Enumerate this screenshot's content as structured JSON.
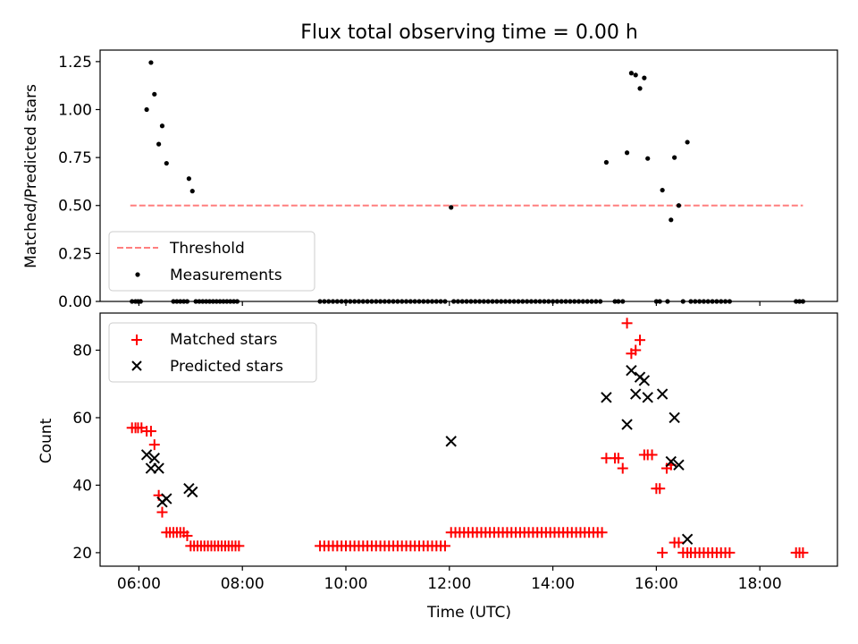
{
  "chart_data": [
    {
      "type": "scatter",
      "title": "Flux total observing time = 0.00 h",
      "xlabel": "",
      "ylabel": "Matched/Predicted stars",
      "xlim": [
        "05:15",
        "19:30"
      ],
      "ylim": [
        0,
        1.31
      ],
      "yticks": [
        0.0,
        0.25,
        0.5,
        0.75,
        1.0,
        1.25
      ],
      "ytick_labels": [
        "0.00",
        "0.25",
        "0.50",
        "0.75",
        "1.00",
        "1.25"
      ],
      "legend_position": "lower-left",
      "series": [
        {
          "name": "Threshold",
          "kind": "line",
          "style": "dashed",
          "color": "#ff7f7f",
          "x": [
            "05:50",
            "18:50"
          ],
          "y": [
            0.5,
            0.5
          ]
        },
        {
          "name": "Measurements",
          "kind": "scatter",
          "marker": "dot",
          "color": "#000000",
          "x": [
            "06:09",
            "06:14",
            "06:18",
            "06:23",
            "06:27",
            "06:32",
            "06:58",
            "07:02",
            "12:02",
            "15:02",
            "15:26",
            "15:31",
            "15:36",
            "15:41",
            "15:46",
            "15:50",
            "16:07",
            "16:17",
            "16:21",
            "16:26",
            "16:36",
            "05:52",
            "05:56",
            "05:59",
            "06:02",
            "06:40",
            "06:44",
            "06:48",
            "06:52",
            "06:56",
            "07:06",
            "07:10",
            "07:14",
            "07:18",
            "07:22",
            "07:26",
            "07:30",
            "07:34",
            "07:38",
            "07:42",
            "07:46",
            "07:50",
            "07:54",
            "09:30",
            "09:35",
            "09:40",
            "09:45",
            "09:50",
            "09:55",
            "10:00",
            "10:05",
            "10:10",
            "10:15",
            "10:20",
            "10:25",
            "10:30",
            "10:35",
            "10:40",
            "10:45",
            "10:50",
            "10:55",
            "11:00",
            "11:05",
            "11:10",
            "11:15",
            "11:20",
            "11:25",
            "11:30",
            "11:35",
            "11:40",
            "11:45",
            "11:50",
            "11:55",
            "12:05",
            "12:10",
            "12:15",
            "12:20",
            "12:25",
            "12:30",
            "12:35",
            "12:40",
            "12:45",
            "12:50",
            "12:55",
            "13:00",
            "13:05",
            "13:10",
            "13:15",
            "13:20",
            "13:25",
            "13:30",
            "13:35",
            "13:40",
            "13:45",
            "13:50",
            "13:55",
            "14:00",
            "14:05",
            "14:10",
            "14:15",
            "14:20",
            "14:25",
            "14:30",
            "14:35",
            "14:40",
            "14:45",
            "14:50",
            "14:55",
            "15:12",
            "15:16",
            "15:21",
            "16:00",
            "16:04",
            "16:13",
            "16:31",
            "16:40",
            "16:45",
            "16:50",
            "16:55",
            "17:00",
            "17:05",
            "17:10",
            "17:15",
            "17:20",
            "17:25",
            "18:42",
            "18:46",
            "18:50"
          ],
          "y": [
            1.0,
            1.245,
            1.08,
            0.82,
            0.915,
            0.72,
            0.64,
            0.575,
            0.49,
            0.725,
            0.775,
            1.19,
            1.18,
            1.11,
            1.165,
            0.745,
            0.58,
            0.425,
            0.75,
            0.5,
            0.83,
            0,
            0,
            0,
            0,
            0,
            0,
            0,
            0,
            0,
            0,
            0,
            0,
            0,
            0,
            0,
            0,
            0,
            0,
            0,
            0,
            0,
            0,
            0,
            0,
            0,
            0,
            0,
            0,
            0,
            0,
            0,
            0,
            0,
            0,
            0,
            0,
            0,
            0,
            0,
            0,
            0,
            0,
            0,
            0,
            0,
            0,
            0,
            0,
            0,
            0,
            0,
            0,
            0,
            0,
            0,
            0,
            0,
            0,
            0,
            0,
            0,
            0,
            0,
            0,
            0,
            0,
            0,
            0,
            0,
            0,
            0,
            0,
            0,
            0,
            0,
            0,
            0,
            0,
            0,
            0,
            0,
            0,
            0,
            0,
            0,
            0,
            0,
            0,
            0,
            0,
            0,
            0,
            0,
            0,
            0,
            0,
            0,
            0,
            0,
            0,
            0,
            0,
            0,
            0,
            0,
            0,
            0
          ]
        }
      ]
    },
    {
      "type": "scatter",
      "title": "",
      "xlabel": "Time (UTC)",
      "ylabel": "Count",
      "xlim": [
        "05:15",
        "19:30"
      ],
      "ylim": [
        16,
        91
      ],
      "xticks": [
        "06:00",
        "08:00",
        "10:00",
        "12:00",
        "14:00",
        "16:00",
        "18:00"
      ],
      "yticks": [
        20,
        40,
        60,
        80
      ],
      "legend_position": "upper-left",
      "series": [
        {
          "name": "Matched stars",
          "kind": "scatter",
          "marker": "plus",
          "color": "#ff0000",
          "x": [
            "05:52",
            "05:56",
            "05:59",
            "06:03",
            "06:09",
            "06:14",
            "06:18",
            "06:23",
            "06:27",
            "06:32",
            "06:36",
            "06:40",
            "06:44",
            "06:48",
            "06:52",
            "06:56",
            "07:00",
            "07:04",
            "07:08",
            "07:12",
            "07:16",
            "07:20",
            "07:24",
            "07:28",
            "07:32",
            "07:36",
            "07:40",
            "07:44",
            "07:48",
            "07:52",
            "07:56",
            "09:30",
            "09:35",
            "09:40",
            "09:45",
            "09:50",
            "09:55",
            "10:00",
            "10:05",
            "10:10",
            "10:15",
            "10:20",
            "10:25",
            "10:30",
            "10:35",
            "10:40",
            "10:45",
            "10:50",
            "10:55",
            "11:00",
            "11:05",
            "11:10",
            "11:15",
            "11:20",
            "11:25",
            "11:30",
            "11:35",
            "11:40",
            "11:45",
            "11:50",
            "11:55",
            "12:02",
            "12:07",
            "12:12",
            "12:17",
            "12:22",
            "12:27",
            "12:32",
            "12:37",
            "12:42",
            "12:47",
            "12:52",
            "12:57",
            "13:02",
            "13:07",
            "13:12",
            "13:17",
            "13:22",
            "13:27",
            "13:32",
            "13:37",
            "13:42",
            "13:47",
            "13:52",
            "13:57",
            "14:02",
            "14:07",
            "14:12",
            "14:17",
            "14:22",
            "14:27",
            "14:32",
            "14:37",
            "14:42",
            "14:47",
            "14:52",
            "14:57",
            "15:02",
            "15:12",
            "15:16",
            "15:21",
            "15:26",
            "15:31",
            "15:36",
            "15:41",
            "15:46",
            "15:50",
            "15:55",
            "16:00",
            "16:04",
            "16:07",
            "16:12",
            "16:17",
            "16:21",
            "16:26",
            "16:31",
            "16:36",
            "16:40",
            "16:45",
            "16:50",
            "16:55",
            "17:00",
            "17:05",
            "17:10",
            "17:15",
            "17:20",
            "17:25",
            "18:42",
            "18:46",
            "18:50"
          ],
          "y": [
            57,
            57,
            57,
            57,
            56,
            56,
            52,
            37,
            32,
            26,
            26,
            26,
            26,
            26,
            26,
            25,
            22,
            22,
            22,
            22,
            22,
            22,
            22,
            22,
            22,
            22,
            22,
            22,
            22,
            22,
            22,
            22,
            22,
            22,
            22,
            22,
            22,
            22,
            22,
            22,
            22,
            22,
            22,
            22,
            22,
            22,
            22,
            22,
            22,
            22,
            22,
            22,
            22,
            22,
            22,
            22,
            22,
            22,
            22,
            22,
            22,
            26,
            26,
            26,
            26,
            26,
            26,
            26,
            26,
            26,
            26,
            26,
            26,
            26,
            26,
            26,
            26,
            26,
            26,
            26,
            26,
            26,
            26,
            26,
            26,
            26,
            26,
            26,
            26,
            26,
            26,
            26,
            26,
            26,
            26,
            26,
            26,
            48,
            48,
            48,
            45,
            88,
            79,
            80,
            83,
            49,
            49,
            49,
            39,
            39,
            20,
            45,
            46,
            23,
            23,
            20,
            20,
            20,
            20,
            20,
            20,
            20,
            20,
            20,
            20,
            20,
            20,
            20,
            20,
            20
          ]
        },
        {
          "name": "Predicted stars",
          "kind": "scatter",
          "marker": "x",
          "color": "#000000",
          "x": [
            "06:09",
            "06:14",
            "06:18",
            "06:23",
            "06:27",
            "06:32",
            "06:58",
            "07:02",
            "12:02",
            "15:02",
            "15:26",
            "15:31",
            "15:36",
            "15:41",
            "15:46",
            "15:50",
            "16:07",
            "16:17",
            "16:21",
            "16:26",
            "16:36"
          ],
          "y": [
            49,
            45,
            48,
            45,
            35,
            36,
            39,
            38,
            53,
            66,
            58,
            74,
            67,
            72,
            71,
            66,
            67,
            47,
            60,
            46,
            24
          ]
        }
      ]
    }
  ]
}
